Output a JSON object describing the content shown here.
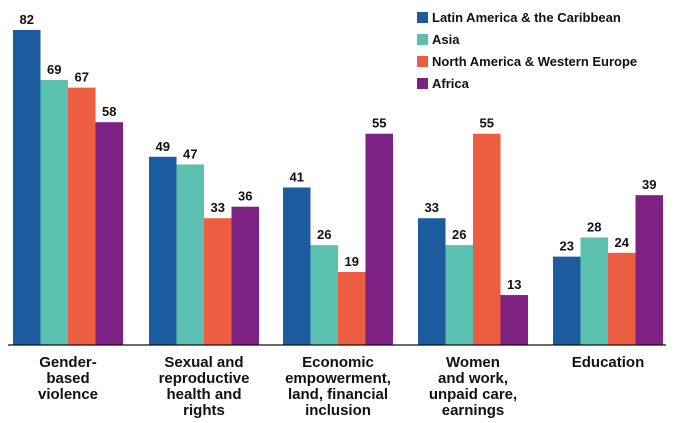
{
  "chart_data": {
    "type": "bar",
    "categories": [
      [
        "Gender-",
        "based",
        "violence"
      ],
      [
        "Sexual and",
        "reproductive",
        "health and",
        "rights"
      ],
      [
        "Economic",
        "empowerment,",
        "land, financial",
        "inclusion"
      ],
      [
        "Women",
        "and work,",
        "unpaid care,",
        "earnings"
      ],
      [
        "Education"
      ]
    ],
    "series": [
      {
        "name": "Latin America & the Caribbean",
        "color": "#1b5b9e",
        "values": [
          82,
          49,
          41,
          33,
          23
        ]
      },
      {
        "name": "Asia",
        "color": "#5cc0b0",
        "values": [
          69,
          47,
          26,
          26,
          28
        ]
      },
      {
        "name": "North America & Western Europe",
        "color": "#ec5d42",
        "values": [
          67,
          33,
          19,
          55,
          24
        ]
      },
      {
        "name": "Africa",
        "color": "#7d2282",
        "values": [
          58,
          36,
          55,
          13,
          39
        ]
      }
    ],
    "ylim": [
      0,
      82
    ],
    "grid": false,
    "legend_position": "top-right"
  }
}
